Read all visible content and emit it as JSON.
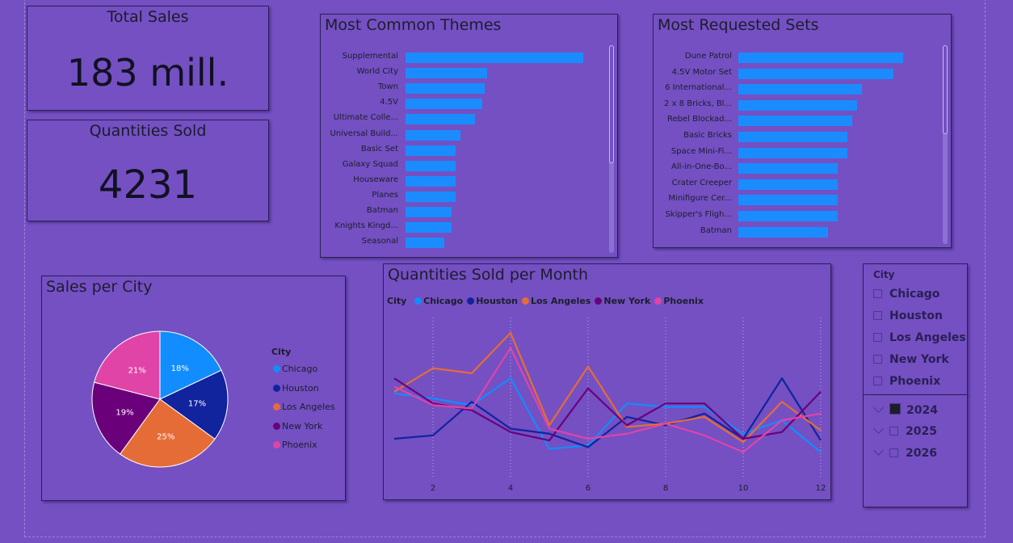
{
  "kpis": {
    "total_sales": {
      "title": "Total Sales",
      "value": "183 mill."
    },
    "quantities_sold": {
      "title": "Quantities Sold",
      "value": "4231"
    }
  },
  "colors": {
    "background": "#7450c3",
    "bar": "#1a8cff",
    "Chicago": "#118dff",
    "Houston": "#12239e",
    "Los Angeles": "#e66c37",
    "New York": "#6b007b",
    "Phoenix": "#e044a7"
  },
  "slicer": {
    "title": "City",
    "cities": [
      "Chicago",
      "Houston",
      "Los Angeles",
      "New York",
      "Phoenix"
    ],
    "years": [
      {
        "label": "2024",
        "checked": true
      },
      {
        "label": "2025",
        "checked": false
      },
      {
        "label": "2026",
        "checked": false
      }
    ]
  },
  "chart_data": [
    {
      "type": "bar",
      "orientation": "horizontal",
      "title": "Most Common Themes",
      "categories": [
        "Supplemental",
        "World City",
        "Town",
        "4.5V",
        "Ultimate Colle...",
        "Universal Build...",
        "Basic Set",
        "Galaxy Squad",
        "Houseware",
        "Planes",
        "Batman",
        "Knights Kingd...",
        "Seasonal"
      ],
      "values": [
        37,
        17,
        16.5,
        16,
        14.5,
        11.5,
        10.5,
        10.5,
        10.5,
        10.5,
        9.5,
        9.5,
        8
      ],
      "xlim": [
        0,
        40
      ]
    },
    {
      "type": "bar",
      "orientation": "horizontal",
      "title": "Most Requested Sets",
      "categories": [
        "Dune Patrol",
        "4.5V Motor Set",
        "6 International...",
        "2 x 8 Bricks, Bl...",
        "Rebel Blockad...",
        "Basic Bricks",
        "Space Mini-Fi...",
        "All-in-One-Bo...",
        "Crater Creeper",
        "Minifigure Cer...",
        "Skipper's Fligh...",
        "Batman"
      ],
      "values": [
        34,
        32,
        25.5,
        24.5,
        23.5,
        22.5,
        22.5,
        20.5,
        20.5,
        20.5,
        20.5,
        18.5
      ],
      "xlim": [
        0,
        40
      ]
    },
    {
      "type": "pie",
      "title": "Sales per City",
      "legend_title": "City",
      "categories": [
        "Chicago",
        "Houston",
        "Los Angeles",
        "New York",
        "Phoenix"
      ],
      "values": [
        18,
        17,
        25,
        19,
        21
      ],
      "labels": [
        "18%",
        "17%",
        "25%",
        "19%",
        "21%"
      ],
      "legend": "right"
    },
    {
      "type": "line",
      "title": "Quantities Sold per Month",
      "legend_title": "City",
      "legend": "top-left",
      "x": [
        1,
        2,
        3,
        4,
        5,
        6,
        7,
        8,
        9,
        10,
        11,
        12
      ],
      "x_ticks": [
        2,
        4,
        6,
        8,
        10,
        12
      ],
      "ylim": [
        0,
        100
      ],
      "series": [
        {
          "name": "Chicago",
          "values": [
            52,
            49,
            45,
            61,
            19,
            21,
            46,
            44,
            44,
            28,
            36,
            17
          ]
        },
        {
          "name": "Houston",
          "values": [
            25,
            27,
            47,
            31,
            28,
            20,
            38,
            33,
            40,
            25,
            61,
            24
          ]
        },
        {
          "name": "Los Angeles",
          "values": [
            53,
            67,
            64,
            88,
            33,
            68,
            32,
            34,
            38,
            23,
            47,
            30
          ]
        },
        {
          "name": "New York",
          "values": [
            61,
            46,
            42,
            29,
            24,
            55,
            33,
            46,
            46,
            25,
            29,
            53
          ]
        },
        {
          "name": "Phoenix",
          "values": [
            56,
            45,
            43,
            79,
            31,
            25,
            28,
            34,
            27,
            17,
            36,
            40
          ]
        }
      ]
    }
  ]
}
